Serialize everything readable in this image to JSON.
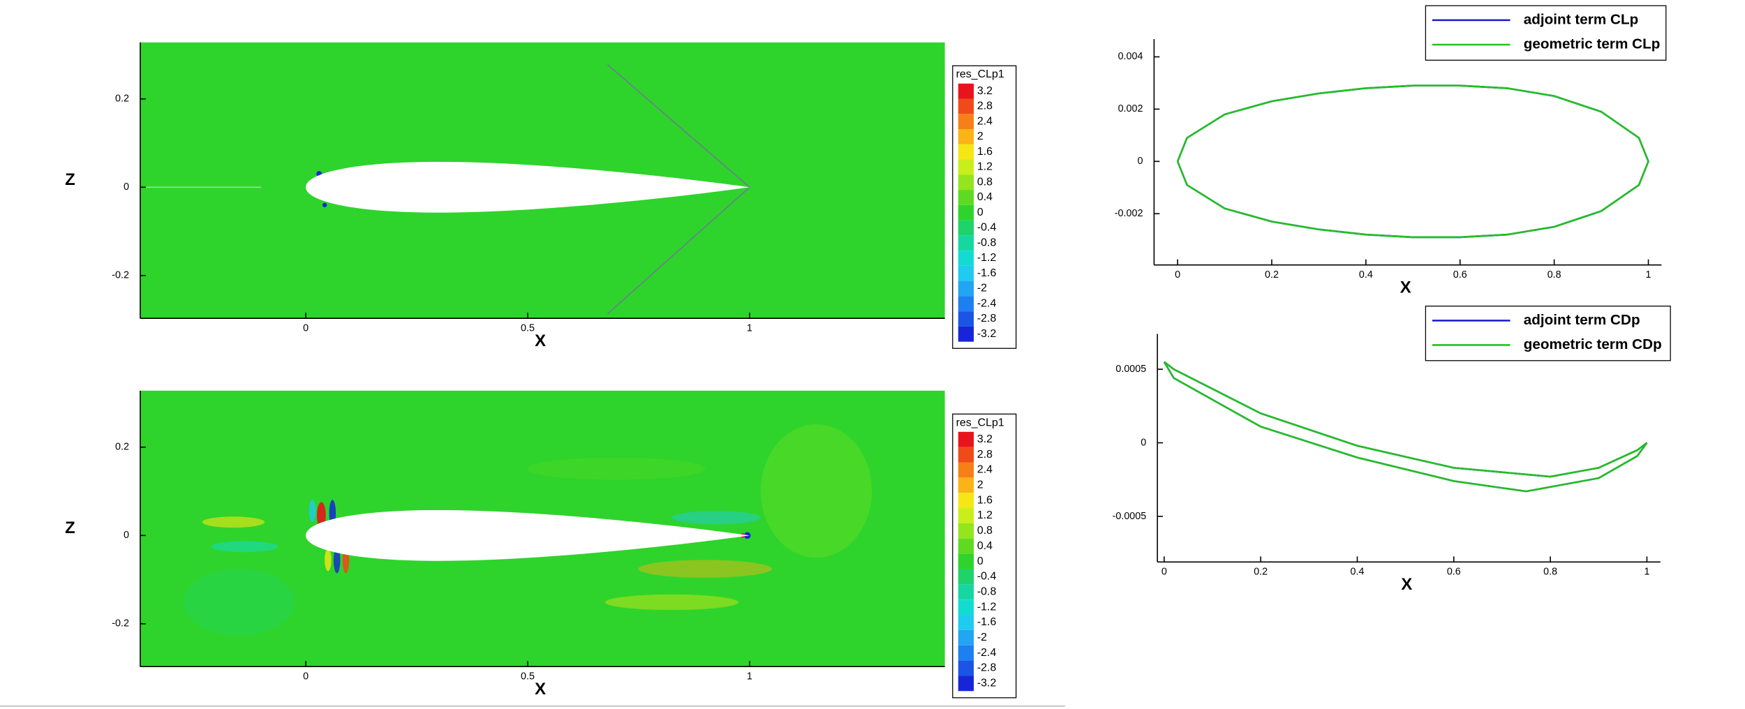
{
  "chart_data": [
    {
      "type": "contour",
      "xlabel": "X",
      "ylabel": "Z",
      "xlim": [
        -0.373,
        1.44
      ],
      "ylim": [
        -0.297,
        0.328
      ],
      "xticks": [
        0,
        0.5,
        1
      ],
      "yticks": [
        -0.2,
        0,
        0.2
      ],
      "colorbar": {
        "title": "res_CLp1",
        "levels": [
          3.2,
          2.8,
          2.4,
          2,
          1.6,
          1.2,
          0.8,
          0.4,
          0,
          -0.4,
          -0.8,
          -1.2,
          -1.6,
          -2,
          -2.4,
          -2.8,
          -3.2
        ],
        "colors": [
          "#e8141c",
          "#f04a1a",
          "#f77f17",
          "#fbb315",
          "#f5e614",
          "#c8ef1a",
          "#94e41e",
          "#5fda22",
          "#2ed42b",
          "#1ed36a",
          "#17d7a0",
          "#12dcd2",
          "#1fcbf0",
          "#22a5f2",
          "#1e7ff0",
          "#1a55e6",
          "#1626d6"
        ]
      }
    },
    {
      "type": "contour",
      "xlabel": "X",
      "ylabel": "Z",
      "xlim": [
        -0.373,
        1.44
      ],
      "ylim": [
        -0.297,
        0.328
      ],
      "xticks": [
        0,
        0.5,
        1
      ],
      "yticks": [
        -0.2,
        0,
        0.2
      ],
      "colorbar": {
        "title": "res_CLp1",
        "levels": [
          3.2,
          2.8,
          2.4,
          2,
          1.6,
          1.2,
          0.8,
          0.4,
          0,
          -0.4,
          -0.8,
          -1.2,
          -1.6,
          -2,
          -2.4,
          -2.8,
          -3.2
        ],
        "colors": [
          "#e8141c",
          "#f04a1a",
          "#f77f17",
          "#fbb315",
          "#f5e614",
          "#c8ef1a",
          "#94e41e",
          "#5fda22",
          "#2ed42b",
          "#1ed36a",
          "#17d7a0",
          "#12dcd2",
          "#1fcbf0",
          "#22a5f2",
          "#1e7ff0",
          "#1a55e6",
          "#1626d6"
        ]
      }
    },
    {
      "type": "line",
      "xlabel": "X",
      "legend": "upper right",
      "xlim": [
        -0.05,
        1.028
      ],
      "ylim": [
        -0.00396,
        0.00468
      ],
      "xticks": [
        0,
        0.2,
        0.4,
        0.6,
        0.8,
        1
      ],
      "yticks": [
        -0.002,
        0,
        0.002,
        0.004
      ],
      "x": [
        0,
        0.02,
        0.1,
        0.2,
        0.3,
        0.4,
        0.5,
        0.6,
        0.7,
        0.8,
        0.9,
        0.98,
        1,
        0.98,
        0.9,
        0.8,
        0.7,
        0.6,
        0.5,
        0.4,
        0.3,
        0.2,
        0.1,
        0.02,
        0
      ],
      "series": [
        {
          "name": "adjoint term CLp",
          "color": "#1a1acc",
          "values": [
            0,
            0.0009,
            0.0018,
            0.0023,
            0.0026,
            0.0028,
            0.0029,
            0.0029,
            0.0028,
            0.0025,
            0.0019,
            0.0009,
            0,
            -0.0009,
            -0.0019,
            -0.0025,
            -0.0028,
            -0.0029,
            -0.0029,
            -0.0028,
            -0.0026,
            -0.0023,
            -0.0018,
            -0.0009,
            0
          ]
        },
        {
          "name": "geometric term CLp",
          "color": "#22c022",
          "values": [
            0,
            0.0009,
            0.0018,
            0.0023,
            0.0026,
            0.0028,
            0.0029,
            0.0029,
            0.0028,
            0.0025,
            0.0019,
            0.0009,
            0,
            -0.0009,
            -0.0019,
            -0.0025,
            -0.0028,
            -0.0029,
            -0.0029,
            -0.0028,
            -0.0026,
            -0.0023,
            -0.0018,
            -0.0009,
            0
          ]
        }
      ]
    },
    {
      "type": "line",
      "xlabel": "X",
      "legend": "upper right",
      "xlim": [
        -0.014,
        1.028
      ],
      "ylim": [
        -0.00081,
        0.00074
      ],
      "xticks": [
        0,
        0.2,
        0.4,
        0.6,
        0.8,
        1
      ],
      "yticks": [
        -0.0005,
        0,
        0.0005
      ],
      "x": [
        0,
        0.02,
        0.2,
        0.4,
        0.6,
        0.8,
        0.9,
        0.98,
        1,
        0.98,
        0.9,
        0.75,
        0.6,
        0.4,
        0.2,
        0.02,
        0
      ],
      "series": [
        {
          "name": "adjoint term CDp",
          "color": "#1a1acc",
          "values": [
            0.00055,
            0.0005,
            0.0002,
            -2e-05,
            -0.00017,
            -0.00023,
            -0.00017,
            -5e-05,
            0,
            -9e-05,
            -0.00024,
            -0.00033,
            -0.00026,
            -0.0001,
            0.00011,
            0.00044,
            0.00055
          ]
        },
        {
          "name": "geometric term CDp",
          "color": "#22c022",
          "values": [
            0.00055,
            0.0005,
            0.0002,
            -2e-05,
            -0.00017,
            -0.00023,
            -0.00017,
            -5e-05,
            0,
            -9e-05,
            -0.00024,
            -0.00033,
            -0.00026,
            -0.0001,
            0.00011,
            0.00044,
            0.00055
          ]
        }
      ]
    }
  ]
}
